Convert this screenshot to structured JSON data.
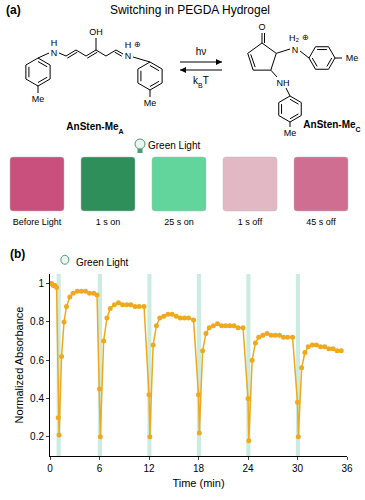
{
  "panel_a": {
    "label": "(a)",
    "title": "Switching in PEGDA Hydrogel",
    "compound_open": {
      "name": "AnSten-Me",
      "subscript": "A",
      "atoms": [
        "N",
        "H",
        "OH",
        "N",
        "H",
        "⊕",
        "Me",
        "Me"
      ]
    },
    "compound_closed": {
      "name": "AnSten-Me",
      "subscript": "C",
      "atoms": [
        "O",
        "N",
        "H₂",
        "⊕",
        "NH",
        "Me",
        "Me"
      ]
    },
    "reaction": {
      "forward": "hν",
      "reverse": {
        "main": "k",
        "sub": "B",
        "after": "T"
      }
    },
    "light_label": "Green Light",
    "photos": [
      {
        "label": "Before Light",
        "color": "#c9507c"
      },
      {
        "label": "1 s on",
        "color": "#2f8f5b"
      },
      {
        "label": "25 s on",
        "color": "#62d59c"
      },
      {
        "label": "1 s off",
        "color": "#e2b8c5"
      },
      {
        "label": "45 s off",
        "color": "#cf6e90"
      }
    ]
  },
  "chart_data": {
    "type": "line",
    "label": "(b)",
    "annotation": "Green Light",
    "x_label": "Time (min)",
    "y_label": "Normalized Absorbance",
    "color": "#f0a81e",
    "marker": "circle",
    "line_style": "solid",
    "grid": false,
    "light_on": [
      [
        0.8,
        1.3
      ],
      [
        5.8,
        6.3
      ],
      [
        11.8,
        12.3
      ],
      [
        17.8,
        18.3
      ],
      [
        23.8,
        24.3
      ],
      [
        29.8,
        30.3
      ]
    ],
    "light_color": "#a8e0cc",
    "x": [
      0,
      0.2,
      0.4,
      0.6,
      0.8,
      1.0,
      1.1,
      1.4,
      1.7,
      2.0,
      2.4,
      2.8,
      3.3,
      3.8,
      4.3,
      4.8,
      5.3,
      5.7,
      6.0,
      6.1,
      6.5,
      6.9,
      7.3,
      7.8,
      8.3,
      8.8,
      9.3,
      9.8,
      10.3,
      10.8,
      11.4,
      12.0,
      12.1,
      12.5,
      12.9,
      13.3,
      13.8,
      14.3,
      14.8,
      15.3,
      15.8,
      16.3,
      16.8,
      17.4,
      18.0,
      18.1,
      18.5,
      18.9,
      19.3,
      19.8,
      20.3,
      20.8,
      21.3,
      21.8,
      22.3,
      22.8,
      23.4,
      24.0,
      24.1,
      24.5,
      24.9,
      25.3,
      25.8,
      26.3,
      26.8,
      27.3,
      27.8,
      28.3,
      28.8,
      29.4,
      30.0,
      30.1,
      30.5,
      30.9,
      31.3,
      31.8,
      32.3,
      32.8,
      33.3,
      33.8,
      34.3,
      34.8,
      35.3
    ],
    "values": [
      1.0,
      1.0,
      0.99,
      0.99,
      0.98,
      0.3,
      0.21,
      0.62,
      0.8,
      0.88,
      0.93,
      0.95,
      0.96,
      0.96,
      0.96,
      0.95,
      0.95,
      0.94,
      0.45,
      0.2,
      0.7,
      0.82,
      0.87,
      0.89,
      0.9,
      0.89,
      0.89,
      0.89,
      0.88,
      0.88,
      0.88,
      0.42,
      0.2,
      0.68,
      0.78,
      0.82,
      0.83,
      0.84,
      0.84,
      0.83,
      0.82,
      0.82,
      0.82,
      0.81,
      0.42,
      0.22,
      0.65,
      0.74,
      0.77,
      0.78,
      0.79,
      0.78,
      0.78,
      0.78,
      0.78,
      0.77,
      0.77,
      0.4,
      0.18,
      0.6,
      0.69,
      0.72,
      0.73,
      0.74,
      0.73,
      0.73,
      0.73,
      0.72,
      0.72,
      0.72,
      0.38,
      0.2,
      0.56,
      0.64,
      0.67,
      0.68,
      0.68,
      0.67,
      0.67,
      0.66,
      0.66,
      0.65,
      0.65
    ],
    "xlim": [
      0,
      36
    ],
    "xticks": [
      0,
      6,
      12,
      18,
      24,
      30,
      36
    ],
    "ylim": [
      0.1,
      1.05
    ],
    "yticks": [
      0.2,
      0.4,
      0.6,
      0.8,
      1
    ]
  }
}
